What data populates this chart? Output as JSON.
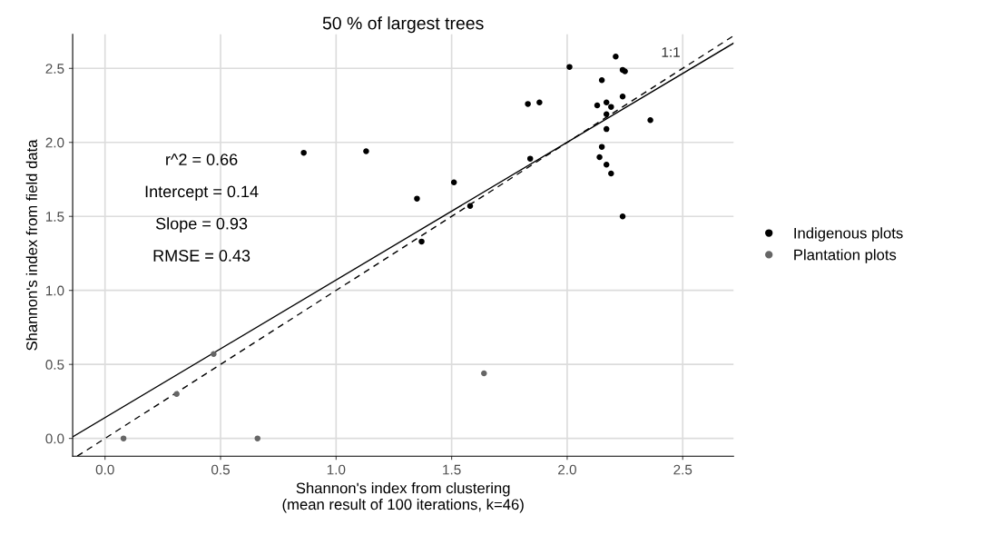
{
  "chart_data": {
    "type": "scatter",
    "title": "50 % of largest trees",
    "xlabel": "Shannon's index from clustering\n(mean result of 100 iterations, k=46)",
    "ylabel": "Shannon's index from field data",
    "series": [
      {
        "name": "Indigenous plots",
        "color": "#000000",
        "x": [
          0.86,
          1.13,
          1.35,
          1.37,
          1.51,
          1.58,
          1.83,
          1.88,
          1.84,
          2.01,
          2.21,
          2.15,
          2.24,
          2.25,
          2.24,
          2.13,
          2.17,
          2.19,
          2.17,
          2.36,
          2.17,
          2.15,
          2.14,
          2.17,
          2.19,
          2.24
        ],
        "values": [
          1.93,
          1.94,
          1.62,
          1.33,
          1.73,
          1.57,
          2.26,
          2.27,
          1.89,
          2.51,
          2.58,
          2.42,
          2.49,
          2.48,
          2.31,
          2.25,
          2.27,
          2.24,
          2.19,
          2.15,
          2.09,
          1.97,
          1.9,
          1.85,
          1.79,
          1.5
        ]
      },
      {
        "name": "Plantation plots",
        "color": "#666666",
        "x": [
          0.47,
          0.31,
          0.08,
          0.66,
          1.64
        ],
        "values": [
          0.57,
          0.3,
          0.0,
          0.0,
          0.44
        ]
      },
      {
        "type": "line",
        "color": "#000000",
        "line_style": "solid",
        "marker": "none",
        "x": [
          -0.14,
          2.72
        ],
        "values": [
          0.01,
          2.67
        ]
      },
      {
        "type": "line",
        "color": "#000000",
        "line_style": "dashed",
        "marker": "none",
        "x": [
          -0.12,
          2.72
        ],
        "values": [
          -0.12,
          2.72
        ]
      }
    ],
    "marker": "circle",
    "xlim": [
      -0.14,
      2.72
    ],
    "ylim": [
      -0.12,
      2.73
    ],
    "xticks": [
      {
        "value": 0,
        "label": "0.0"
      },
      {
        "value": 0.5,
        "label": "0.5"
      },
      {
        "value": 1,
        "label": "1.0"
      },
      {
        "value": 1.5,
        "label": "1.5"
      },
      {
        "value": 2,
        "label": "2.0"
      },
      {
        "value": 2.5,
        "label": "2.5"
      }
    ],
    "yticks": [
      {
        "value": 0,
        "label": "0.0"
      },
      {
        "value": 0.5,
        "label": "0.5"
      },
      {
        "value": 1,
        "label": "1.0"
      },
      {
        "value": 1.5,
        "label": "1.5"
      },
      {
        "value": 2,
        "label": "2.0"
      },
      {
        "value": 2.5,
        "label": "2.5"
      }
    ],
    "annotations": [
      "1:1",
      "r^2 = 0.66",
      "Intercept = 0.14",
      "Slope = 0.93",
      "RMSE = 0.43"
    ],
    "grid": true,
    "legend": "right"
  }
}
